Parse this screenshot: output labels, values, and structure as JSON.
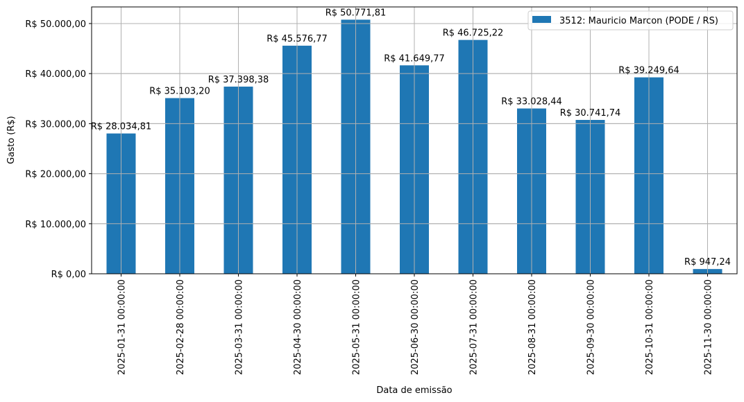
{
  "chart_data": {
    "type": "bar",
    "title": "",
    "xlabel": "Data de emissão",
    "ylabel": "Gasto (R$)",
    "ylim": [
      0,
      53320
    ],
    "grid": true,
    "legend_position": "upper right",
    "categories": [
      "2025-01-31 00:00:00",
      "2025-02-28 00:00:00",
      "2025-03-31 00:00:00",
      "2025-04-30 00:00:00",
      "2025-05-31 00:00:00",
      "2025-06-30 00:00:00",
      "2025-07-31 00:00:00",
      "2025-08-31 00:00:00",
      "2025-09-30 00:00:00",
      "2025-10-31 00:00:00",
      "2025-11-30 00:00:00"
    ],
    "series": [
      {
        "name": "3512: Mauricio Marcon (PODE / RS)",
        "color": "#1f77b4",
        "values": [
          28034.81,
          35103.2,
          37398.38,
          45576.77,
          50771.81,
          41649.77,
          46725.22,
          33028.44,
          30741.74,
          39249.64,
          947.24
        ],
        "labels": [
          "R$ 28.034,81",
          "R$ 35.103,20",
          "R$ 37.398,38",
          "R$ 45.576,77",
          "R$ 50.771,81",
          "R$ 41.649,77",
          "R$ 46.725,22",
          "R$ 33.028,44",
          "R$ 30.741,74",
          "R$ 39.249,64",
          "R$ 947,24"
        ]
      }
    ],
    "yticks": [
      {
        "value": 0,
        "label": "R$ 0,00"
      },
      {
        "value": 10000,
        "label": "R$ 10.000,00"
      },
      {
        "value": 20000,
        "label": "R$ 20.000,00"
      },
      {
        "value": 30000,
        "label": "R$ 30.000,00"
      },
      {
        "value": 40000,
        "label": "R$ 40.000,00"
      },
      {
        "value": 50000,
        "label": "R$ 50.000,00"
      }
    ]
  },
  "colors": {
    "bar": "#1f77b4",
    "grid": "#b0b0b0",
    "axis": "#000000"
  }
}
